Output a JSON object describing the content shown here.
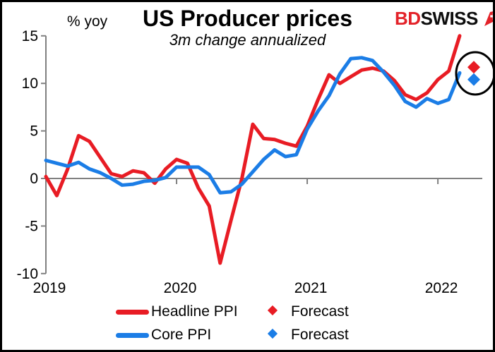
{
  "header": {
    "title": "US Producer prices",
    "subtitle": "3m change annualized",
    "unit_label": "% yoy"
  },
  "logo": {
    "part1": "BD",
    "part2": "SWISS"
  },
  "legend": {
    "headline_label": "Headline PPI",
    "core_label": "Core PPI",
    "forecast_headline_label": "Forecast",
    "forecast_core_label": "Forecast"
  },
  "colors": {
    "headline": "#e81c24",
    "core": "#1b7de6",
    "axis": "#808080",
    "annotation": "#000000",
    "logo_red": "#e32229"
  },
  "chart_data": {
    "type": "line",
    "title": "US Producer prices",
    "subtitle": "3m change annualized",
    "xlabel": "",
    "ylabel": "% yoy",
    "ylim": [
      -10,
      15
    ],
    "yticks": [
      15,
      10,
      5,
      0,
      -5,
      -10
    ],
    "xticklabels": [
      "2019",
      "2020",
      "2021",
      "2022"
    ],
    "grid": false,
    "legend_position": "bottom",
    "months": [
      "2019-01",
      "2019-02",
      "2019-03",
      "2019-04",
      "2019-05",
      "2019-06",
      "2019-07",
      "2019-08",
      "2019-09",
      "2019-10",
      "2019-11",
      "2019-12",
      "2020-01",
      "2020-02",
      "2020-03",
      "2020-04",
      "2020-05",
      "2020-06",
      "2020-07",
      "2020-08",
      "2020-09",
      "2020-10",
      "2020-11",
      "2020-12",
      "2021-01",
      "2021-02",
      "2021-03",
      "2021-04",
      "2021-05",
      "2021-06",
      "2021-07",
      "2021-08",
      "2021-09",
      "2021-10",
      "2021-11",
      "2021-12",
      "2022-01",
      "2022-02",
      "2022-03"
    ],
    "series": [
      {
        "name": "Headline PPI",
        "color": "#e81c24",
        "values": [
          0.2,
          -1.8,
          1.0,
          4.5,
          3.9,
          2.2,
          0.5,
          0.2,
          0.8,
          0.6,
          -0.5,
          1.0,
          2.0,
          1.6,
          -1.0,
          -2.9,
          -8.9,
          -4.4,
          0.0,
          5.7,
          4.2,
          4.1,
          3.7,
          3.4,
          5.5,
          8.3,
          10.9,
          10.0,
          10.7,
          11.4,
          11.6,
          11.3,
          10.3,
          8.8,
          8.3,
          9.0,
          10.4,
          11.3,
          15.0
        ]
      },
      {
        "name": "Core PPI",
        "color": "#1b7de6",
        "values": [
          1.9,
          1.6,
          1.3,
          1.7,
          1.0,
          0.6,
          0.0,
          -0.7,
          -0.6,
          -0.3,
          -0.2,
          0.1,
          1.2,
          1.2,
          1.2,
          0.4,
          -1.5,
          -1.4,
          -0.6,
          0.7,
          2.0,
          3.0,
          2.3,
          2.5,
          5.2,
          7.1,
          8.7,
          11.0,
          12.6,
          12.7,
          12.4,
          11.2,
          9.8,
          8.1,
          7.5,
          8.4,
          7.9,
          8.3,
          11.1
        ]
      }
    ],
    "forecast": [
      {
        "name": "Headline PPI forecast",
        "x": "2022-04",
        "value": 11.7,
        "color": "#e81c24",
        "marker": "diamond"
      },
      {
        "name": "Core PPI forecast",
        "x": "2022-04",
        "value": 10.4,
        "color": "#1b7de6",
        "marker": "diamond"
      }
    ],
    "annotation": "black ellipse circling the two forecast diamonds at the right edge"
  }
}
